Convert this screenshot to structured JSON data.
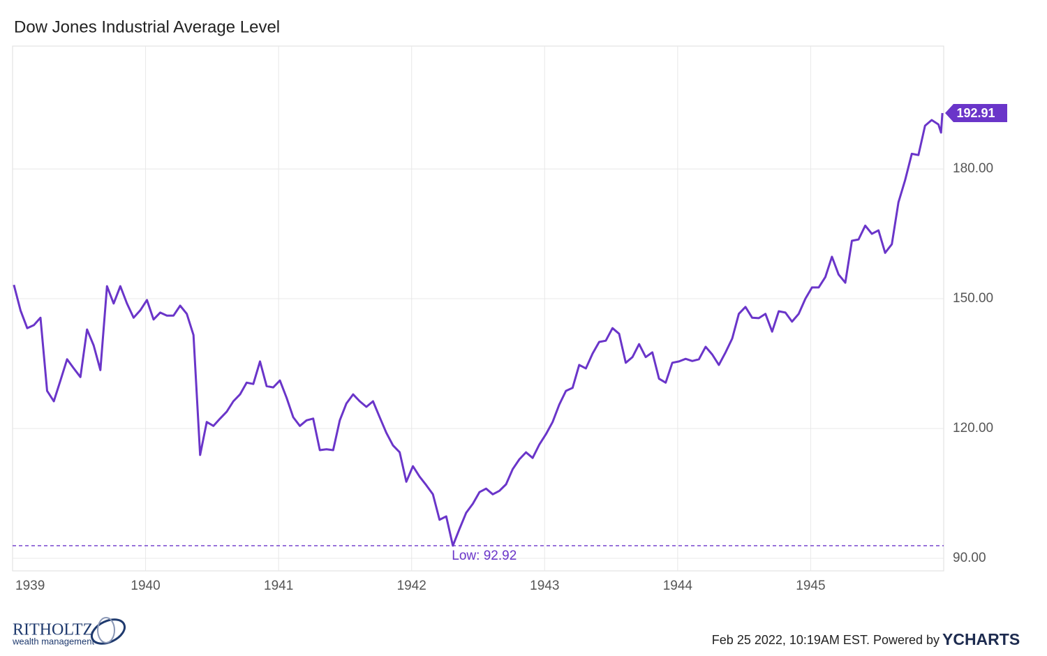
{
  "chart_data": {
    "type": "line",
    "title": "Dow Jones Industrial Average Level",
    "footer": "Feb 25 2022, 10:19AM EST. Powered by",
    "brand": "YCHARTS",
    "logo": {
      "name": "RITHOLTZ",
      "tagline": "wealth management"
    },
    "xlim": [
      1939,
      1946
    ],
    "xticks": [
      1939,
      1940,
      1941,
      1942,
      1943,
      1944,
      1945
    ],
    "ylim": [
      87.1,
      208.4
    ],
    "yticks": [
      {
        "value": 90,
        "label": "90.00"
      },
      {
        "value": 120,
        "label": "120.00"
      },
      {
        "value": 150,
        "label": "150.00"
      },
      {
        "value": 180,
        "label": "180.00"
      }
    ],
    "grid": true,
    "annotations": [
      {
        "label": "Low: 92.92",
        "value": 92.92
      }
    ],
    "x": [
      1939.01,
      1939.06,
      1939.11,
      1939.16,
      1939.21,
      1939.26,
      1939.31,
      1939.36,
      1939.41,
      1939.46,
      1939.51,
      1939.56,
      1939.61,
      1939.66,
      1939.71,
      1939.76,
      1939.81,
      1939.86,
      1939.91,
      1939.96,
      1940.01,
      1940.06,
      1940.11,
      1940.16,
      1940.21,
      1940.26,
      1940.31,
      1940.36,
      1940.41,
      1940.46,
      1940.51,
      1940.56,
      1940.61,
      1940.66,
      1940.71,
      1940.76,
      1940.81,
      1940.86,
      1940.91,
      1940.96,
      1941.01,
      1941.06,
      1941.11,
      1941.16,
      1941.21,
      1941.26,
      1941.31,
      1941.36,
      1941.41,
      1941.46,
      1941.51,
      1941.56,
      1941.61,
      1941.66,
      1941.71,
      1941.76,
      1941.81,
      1941.86,
      1941.91,
      1941.96,
      1942.01,
      1942.06,
      1942.11,
      1942.16,
      1942.21,
      1942.26,
      1942.31,
      1942.36,
      1942.41,
      1942.46,
      1942.51,
      1942.56,
      1942.61,
      1942.66,
      1942.71,
      1942.76,
      1942.81,
      1942.86,
      1942.91,
      1942.96,
      1943.01,
      1943.06,
      1943.11,
      1943.16,
      1943.21,
      1943.26,
      1943.31,
      1943.36,
      1943.41,
      1943.46,
      1943.51,
      1943.56,
      1943.61,
      1943.66,
      1943.71,
      1943.76,
      1943.81,
      1943.86,
      1943.91,
      1943.96,
      1944.01,
      1944.06,
      1944.11,
      1944.16,
      1944.21,
      1944.26,
      1944.31,
      1944.36,
      1944.41,
      1944.46,
      1944.51,
      1944.56,
      1944.61,
      1944.66,
      1944.71,
      1944.76,
      1944.81,
      1944.86,
      1944.91,
      1944.96,
      1945.01,
      1945.06,
      1945.11,
      1945.16,
      1945.21,
      1945.26,
      1945.31,
      1945.36,
      1945.41,
      1945.46,
      1945.51,
      1945.56,
      1945.61,
      1945.66,
      1945.71,
      1945.76,
      1945.81,
      1945.86,
      1945.91,
      1945.96,
      1945.98,
      1945.99
    ],
    "series": [
      {
        "name": "Dow Jones Industrial Average Level",
        "color": "#6a35c9",
        "values": [
          153.2,
          147.3,
          143.2,
          143.9,
          145.6,
          128.7,
          126.3,
          131.1,
          136.0,
          133.9,
          131.9,
          142.9,
          139.2,
          133.5,
          152.9,
          148.9,
          152.9,
          148.9,
          145.6,
          147.3,
          149.7,
          145.2,
          146.8,
          146.1,
          146.1,
          148.4,
          146.5,
          141.6,
          113.9,
          121.5,
          120.6,
          122.3,
          123.9,
          126.3,
          127.9,
          130.6,
          130.3,
          135.5,
          129.8,
          129.5,
          131.1,
          127.1,
          122.6,
          120.6,
          121.9,
          122.3,
          115.0,
          115.2,
          115.0,
          121.9,
          125.8,
          127.9,
          126.3,
          125.0,
          126.3,
          122.6,
          119.0,
          116.1,
          114.5,
          107.7,
          111.3,
          108.9,
          106.9,
          104.8,
          98.9,
          99.7,
          92.92,
          96.8,
          100.5,
          102.6,
          105.3,
          106.1,
          104.8,
          105.6,
          107.1,
          110.6,
          112.9,
          114.5,
          113.2,
          116.3,
          118.7,
          121.5,
          125.5,
          128.7,
          129.4,
          134.7,
          133.9,
          137.3,
          140.0,
          140.3,
          143.2,
          141.9,
          135.2,
          136.5,
          139.5,
          136.5,
          137.6,
          131.5,
          130.6,
          135.2,
          135.5,
          136.1,
          135.6,
          136.0,
          138.9,
          137.1,
          134.7,
          137.6,
          140.8,
          146.5,
          148.1,
          145.6,
          145.5,
          146.5,
          142.4,
          147.1,
          146.8,
          144.7,
          146.5,
          150.0,
          152.6,
          152.6,
          155.0,
          159.7,
          155.6,
          153.7,
          163.4,
          163.7,
          166.9,
          165.0,
          165.8,
          160.6,
          162.6,
          172.3,
          177.4,
          183.5,
          183.2,
          190.0,
          191.3,
          190.3,
          188.4,
          192.91
        ]
      }
    ]
  }
}
